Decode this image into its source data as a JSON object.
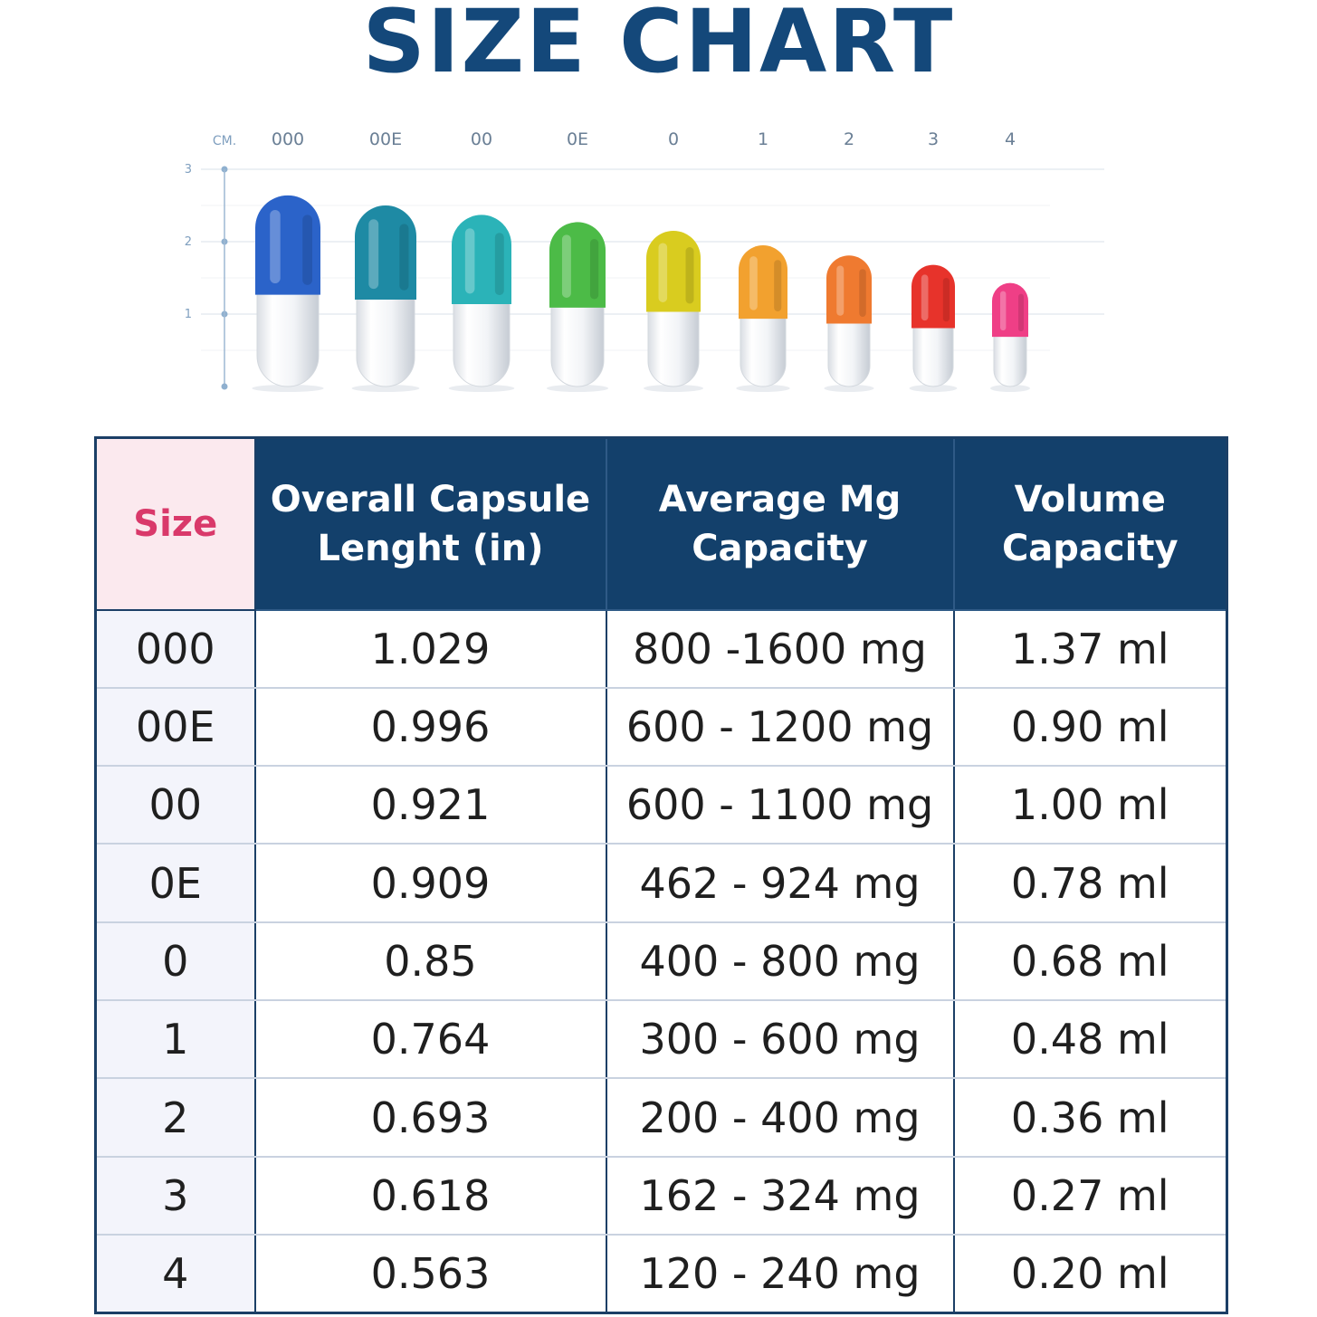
{
  "title": "SIZE CHART",
  "chart_data": {
    "type": "bar",
    "unit_label": "CM.",
    "y_ticks": [
      "3",
      "2",
      "1"
    ],
    "ylim": [
      0,
      3
    ],
    "categories": [
      "000",
      "00E",
      "00",
      "0E",
      "0",
      "1",
      "2",
      "3",
      "4"
    ],
    "values": [
      2.64,
      2.5,
      2.37,
      2.27,
      2.15,
      1.95,
      1.81,
      1.68,
      1.43
    ],
    "colors": [
      "#2b63c9",
      "#1e8aa4",
      "#2bb3b8",
      "#4cbb47",
      "#d9cc1f",
      "#f2a12f",
      "#ef7a30",
      "#e7332b",
      "#ef3f86"
    ]
  },
  "table": {
    "headers": {
      "size": "Size",
      "length_line1": "Overall Capsule",
      "length_line2": "Lenght (in)",
      "mg_line1": "Average Mg",
      "mg_line2": "Capacity",
      "volume_line1": "Volume",
      "volume_line2": "Capacity"
    },
    "rows": [
      {
        "size": "000",
        "length": "1.029",
        "mg": "800 -1600 mg",
        "volume": "1.37 ml"
      },
      {
        "size": "00E",
        "length": "0.996",
        "mg": "600 - 1200 mg",
        "volume": "0.90 ml"
      },
      {
        "size": "00",
        "length": "0.921",
        "mg": "600 - 1100 mg",
        "volume": "1.00 ml"
      },
      {
        "size": "0E",
        "length": "0.909",
        "mg": "462 - 924 mg",
        "volume": "0.78 ml"
      },
      {
        "size": "0",
        "length": "0.85",
        "mg": "400 - 800 mg",
        "volume": "0.68 ml"
      },
      {
        "size": "1",
        "length": "0.764",
        "mg": "300 - 600 mg",
        "volume": "0.48 ml"
      },
      {
        "size": "2",
        "length": "0.693",
        "mg": "200 - 400 mg",
        "volume": "0.36 ml"
      },
      {
        "size": "3",
        "length": "0.618",
        "mg": "162 - 324 mg",
        "volume": "0.27 ml"
      },
      {
        "size": "4",
        "length": "0.563",
        "mg": "120 - 240 mg",
        "volume": "0.20 ml"
      }
    ]
  }
}
